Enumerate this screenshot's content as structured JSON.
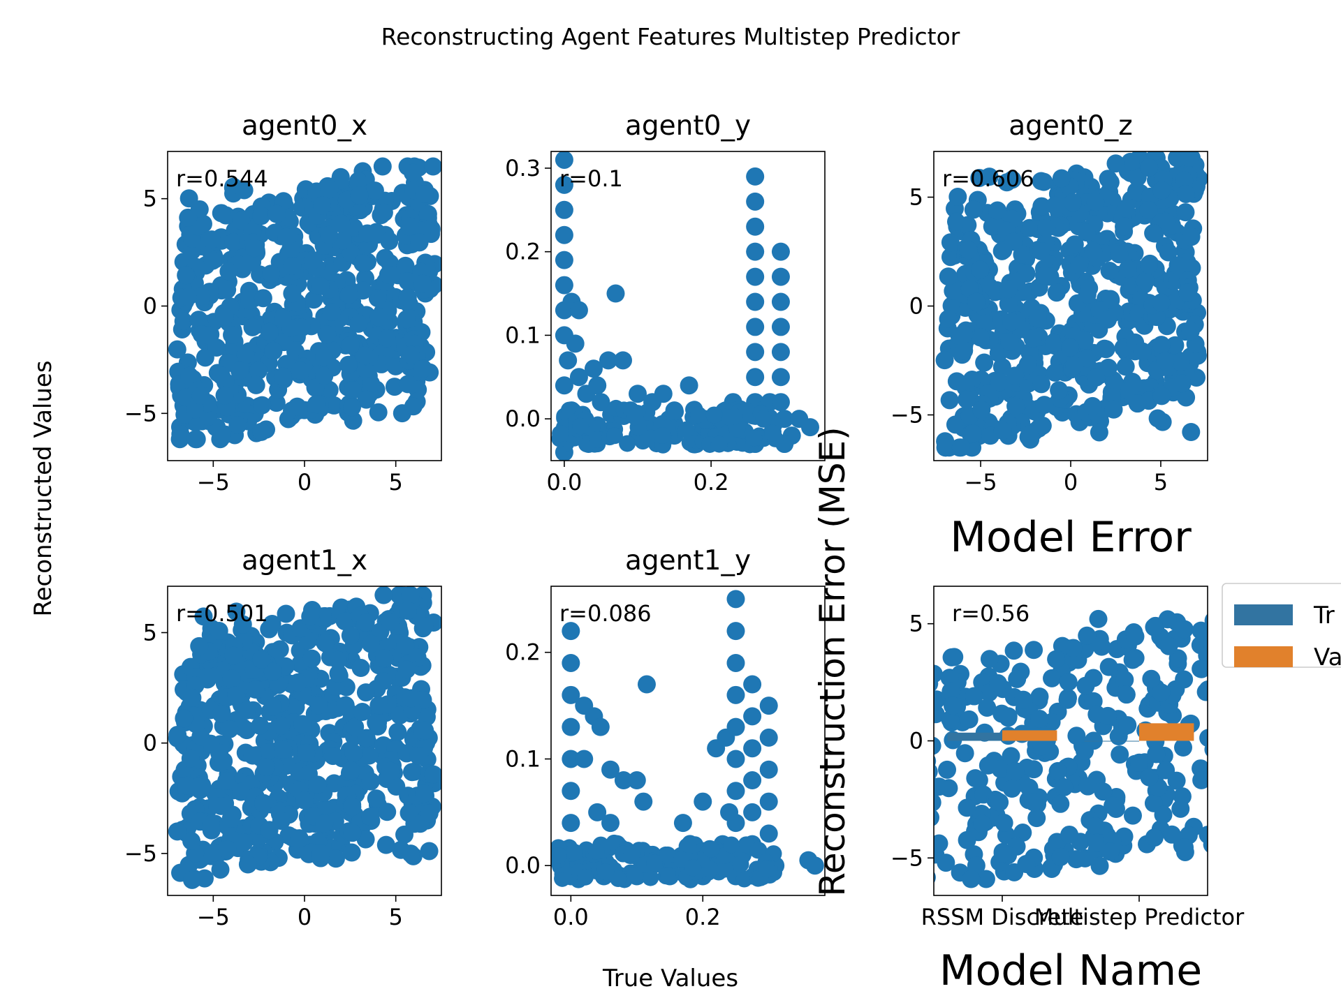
{
  "figure": {
    "title": "Reconstructing Agent Features Multistep Predictor",
    "ylabel": "Reconstructed Values",
    "xlabel": "True Values"
  },
  "colors": {
    "points": "#1f77b4",
    "train": "#3274a1",
    "val": "#e1812c"
  },
  "chart_data": [
    {
      "type": "scatter",
      "title": "agent0_x",
      "annotation": "r=0.544",
      "xlim": [
        -7.5,
        7.5
      ],
      "ylim": [
        -7.2,
        7.2
      ],
      "xticks": [
        -5,
        0,
        5
      ],
      "yticks": [
        -5,
        0,
        5
      ],
      "xtick_labels": [
        "−5",
        "0",
        "5"
      ],
      "ytick_labels": [
        "−5",
        "0",
        "5"
      ],
      "cloud": {
        "x": [
          -7.0,
          7.2
        ],
        "y": [
          -6.2,
          6.5
        ],
        "r": 0.544
      }
    },
    {
      "type": "scatter",
      "title": "agent0_y",
      "annotation": "r=0.1",
      "xlim": [
        -0.018,
        0.355
      ],
      "ylim": [
        -0.05,
        0.32
      ],
      "xticks": [
        0.0,
        0.2
      ],
      "yticks": [
        0.0,
        0.1,
        0.2,
        0.3
      ],
      "xtick_labels": [
        "0.0",
        "0.2"
      ],
      "ytick_labels": [
        "0.0",
        "0.1",
        "0.2",
        "0.3"
      ],
      "points": [
        [
          0.0,
          0.31
        ],
        [
          0.0,
          0.28
        ],
        [
          0.0,
          0.25
        ],
        [
          0.0,
          0.22
        ],
        [
          0.0,
          0.19
        ],
        [
          0.0,
          0.16
        ],
        [
          0.0,
          0.13
        ],
        [
          0.0,
          0.1
        ],
        [
          0.005,
          0.07
        ],
        [
          0.01,
          0.14
        ],
        [
          0.02,
          0.13
        ],
        [
          0.07,
          0.15
        ],
        [
          0.08,
          0.07
        ],
        [
          0.06,
          0.07
        ],
        [
          0.04,
          0.06
        ],
        [
          0.1,
          0.03
        ],
        [
          0.12,
          0.02
        ],
        [
          0.135,
          0.03
        ],
        [
          0.15,
          0.01
        ],
        [
          0.17,
          0.04
        ],
        [
          0.19,
          0.0
        ],
        [
          0.2,
          -0.01
        ],
        [
          0.22,
          0.01
        ],
        [
          0.23,
          0.02
        ],
        [
          0.24,
          0.0
        ],
        [
          0.26,
          0.29
        ],
        [
          0.26,
          0.26
        ],
        [
          0.26,
          0.23
        ],
        [
          0.26,
          0.2
        ],
        [
          0.26,
          0.17
        ],
        [
          0.26,
          0.14
        ],
        [
          0.26,
          0.11
        ],
        [
          0.26,
          0.08
        ],
        [
          0.26,
          0.05
        ],
        [
          0.26,
          0.02
        ],
        [
          0.27,
          0.01
        ],
        [
          0.28,
          0.02
        ],
        [
          0.295,
          0.2
        ],
        [
          0.295,
          0.17
        ],
        [
          0.295,
          0.14
        ],
        [
          0.295,
          0.11
        ],
        [
          0.295,
          0.08
        ],
        [
          0.295,
          0.05
        ],
        [
          0.295,
          0.02
        ],
        [
          0.3,
          0.0
        ],
        [
          0.31,
          -0.02
        ],
        [
          0.32,
          0.0
        ],
        [
          0.335,
          -0.01
        ],
        [
          0.3,
          -0.03
        ],
        [
          0.26,
          -0.03
        ],
        [
          0.2,
          -0.02
        ],
        [
          0.15,
          -0.02
        ],
        [
          0.1,
          -0.02
        ],
        [
          0.05,
          -0.02
        ],
        [
          0.03,
          0.03
        ],
        [
          0.02,
          0.05
        ],
        [
          0.045,
          0.04
        ],
        [
          0.05,
          0.02
        ],
        [
          0.09,
          0.01
        ],
        [
          0.0,
          -0.04
        ],
        [
          0.0,
          0.04
        ],
        [
          0.01,
          0.01
        ],
        [
          0.015,
          0.09
        ]
      ]
    },
    {
      "type": "scatter",
      "title": "agent0_z",
      "annotation": "r=0.606",
      "xlim": [
        -7.6,
        7.6
      ],
      "ylim": [
        -7.1,
        7.1
      ],
      "xticks": [
        -5,
        0,
        5
      ],
      "yticks": [
        -5,
        0,
        5
      ],
      "xtick_labels": [
        "−5",
        "0",
        "5"
      ],
      "ytick_labels": [
        "−5",
        "0",
        "5"
      ],
      "cloud": {
        "x": [
          -7.0,
          7.2
        ],
        "y": [
          -6.5,
          6.8
        ],
        "r": 0.606
      }
    },
    {
      "type": "scatter",
      "title": "agent1_x",
      "annotation": "r=0.501",
      "xlim": [
        -7.5,
        7.5
      ],
      "ylim": [
        -6.9,
        7.1
      ],
      "xticks": [
        -5,
        0,
        5
      ],
      "yticks": [
        -5,
        0,
        5
      ],
      "xtick_labels": [
        "−5",
        "0",
        "5"
      ],
      "ytick_labels": [
        "−5",
        "0",
        "5"
      ],
      "cloud": {
        "x": [
          -7.0,
          7.1
        ],
        "y": [
          -6.2,
          6.7
        ],
        "r": 0.501
      }
    },
    {
      "type": "scatter",
      "title": "agent1_y",
      "annotation": "r=0.086",
      "xlim": [
        -0.03,
        0.385
      ],
      "ylim": [
        -0.028,
        0.262
      ],
      "xticks": [
        0.0,
        0.2
      ],
      "yticks": [
        0.0,
        0.1,
        0.2
      ],
      "xtick_labels": [
        "0.0",
        "0.2"
      ],
      "ytick_labels": [
        "0.0",
        "0.1",
        "0.2"
      ],
      "points": [
        [
          0.0,
          0.22
        ],
        [
          0.0,
          0.19
        ],
        [
          0.0,
          0.16
        ],
        [
          0.0,
          0.13
        ],
        [
          0.0,
          0.1
        ],
        [
          0.0,
          0.07
        ],
        [
          0.0,
          0.04
        ],
        [
          0.005,
          0.01
        ],
        [
          0.02,
          0.15
        ],
        [
          0.035,
          0.14
        ],
        [
          0.02,
          0.1
        ],
        [
          0.045,
          0.13
        ],
        [
          0.06,
          0.09
        ],
        [
          0.08,
          0.08
        ],
        [
          0.1,
          0.08
        ],
        [
          0.115,
          0.17
        ],
        [
          0.11,
          0.06
        ],
        [
          0.04,
          0.05
        ],
        [
          0.06,
          0.04
        ],
        [
          0.07,
          0.02
        ],
        [
          0.09,
          0.01
        ],
        [
          0.12,
          0.01
        ],
        [
          0.15,
          0.0
        ],
        [
          0.17,
          0.04
        ],
        [
          0.18,
          0.01
        ],
        [
          0.2,
          0.06
        ],
        [
          0.22,
          0.11
        ],
        [
          0.235,
          0.12
        ],
        [
          0.25,
          0.25
        ],
        [
          0.25,
          0.22
        ],
        [
          0.25,
          0.19
        ],
        [
          0.25,
          0.16
        ],
        [
          0.25,
          0.13
        ],
        [
          0.25,
          0.1
        ],
        [
          0.25,
          0.07
        ],
        [
          0.25,
          0.04
        ],
        [
          0.26,
          0.01
        ],
        [
          0.275,
          0.17
        ],
        [
          0.275,
          0.14
        ],
        [
          0.275,
          0.11
        ],
        [
          0.275,
          0.08
        ],
        [
          0.275,
          0.05
        ],
        [
          0.275,
          0.02
        ],
        [
          0.3,
          0.15
        ],
        [
          0.3,
          0.12
        ],
        [
          0.3,
          0.09
        ],
        [
          0.3,
          0.06
        ],
        [
          0.3,
          0.03
        ],
        [
          0.3,
          0.0
        ],
        [
          0.31,
          0.0
        ],
        [
          0.36,
          0.005
        ],
        [
          0.37,
          0.0
        ],
        [
          0.0,
          -0.01
        ],
        [
          0.05,
          -0.01
        ],
        [
          0.1,
          -0.01
        ],
        [
          0.15,
          -0.01
        ],
        [
          0.2,
          -0.01
        ],
        [
          0.25,
          -0.01
        ],
        [
          0.29,
          -0.01
        ],
        [
          0.23,
          0.02
        ],
        [
          0.24,
          0.05
        ]
      ]
    },
    {
      "type": "bar",
      "title": "Model Error",
      "annotation": "r=0.56",
      "xlabel": "Model Name",
      "ylabel": "Reconstruction Error (MSE)",
      "categories": [
        "RSSM Discrete",
        "Multistep Predictor"
      ],
      "series": [
        {
          "name": "Train",
          "values": [
            0.35,
            0.0
          ]
        },
        {
          "name": "Val",
          "values": [
            0.45,
            0.75
          ]
        }
      ],
      "legend_labels": [
        "Tr",
        "Va"
      ],
      "legend_position": "right",
      "ylim": [
        -6.6,
        6.6
      ],
      "yticks": [
        -5,
        0,
        5
      ],
      "ytick_labels": [
        "−5",
        "0",
        "5"
      ],
      "cloud": {
        "x": [
          -0.9,
          3.1
        ],
        "y": [
          -5.9,
          5.8
        ],
        "r": 0.56
      }
    }
  ]
}
